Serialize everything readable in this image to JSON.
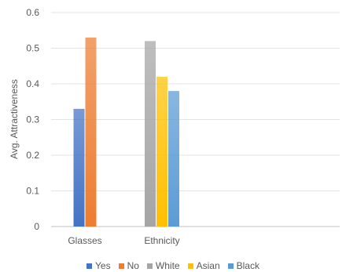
{
  "chart_data": {
    "type": "bar",
    "categories": [
      "Glasses",
      "Ethnicity"
    ],
    "ylabel": "Avg. Attractiveness",
    "xlabel": "",
    "ylim": [
      0,
      0.6
    ],
    "yticks": [
      "0",
      "0.1",
      "0.2",
      "0.3",
      "0.4",
      "0.5",
      "0.6"
    ],
    "grid": true,
    "legend_position": "bottom",
    "series": [
      {
        "name": "Yes",
        "color": "#4472c4",
        "values": [
          0.33,
          null
        ]
      },
      {
        "name": "No",
        "color": "#ed7d31",
        "values": [
          0.53,
          null
        ]
      },
      {
        "name": "White",
        "color": "#a5a5a5",
        "values": [
          null,
          0.52
        ]
      },
      {
        "name": "Asian",
        "color": "#ffc000",
        "values": [
          null,
          0.42
        ]
      },
      {
        "name": "Black",
        "color": "#5b9bd5",
        "values": [
          null,
          0.38
        ]
      }
    ]
  }
}
